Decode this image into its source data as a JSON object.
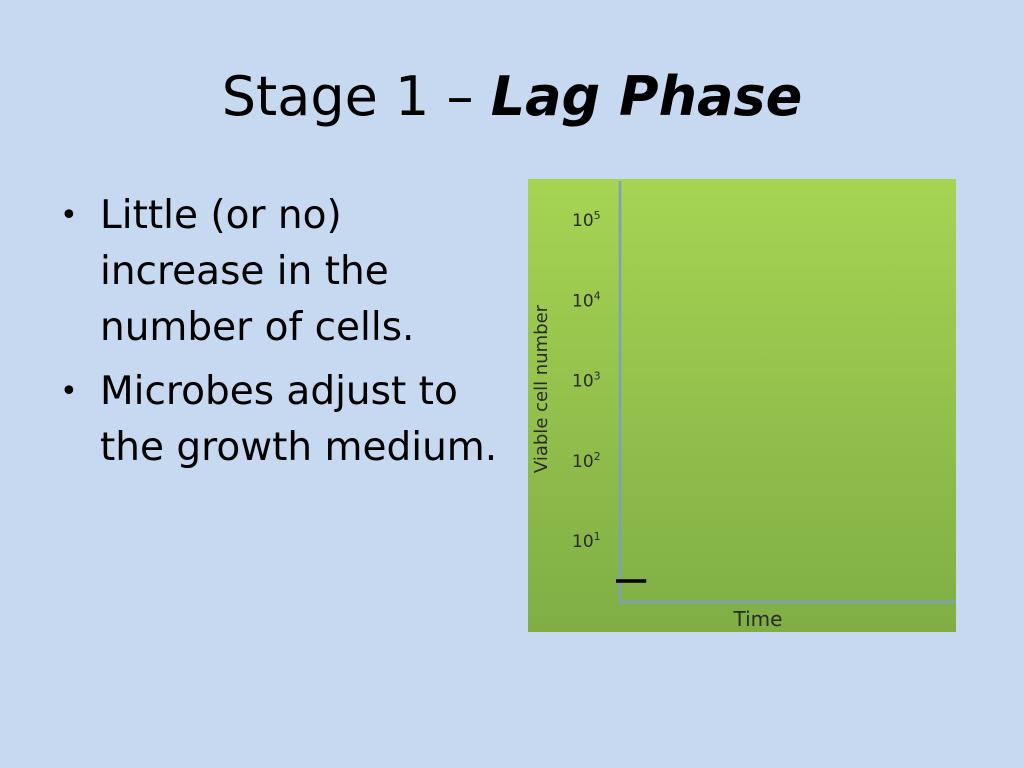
{
  "slide": {
    "title_plain": "Stage 1 – ",
    "title_emph": "Lag Phase",
    "bullets": [
      "Little (or no) increase in the number of cells.",
      "Microbes adjust to the growth medium."
    ],
    "bullet_glyph": "•"
  },
  "chart_data": {
    "type": "line",
    "title": "",
    "xlabel": "Time",
    "ylabel": "Viable cell number",
    "y_scale": "log",
    "y_ticks": [
      {
        "value": 10,
        "base": "10",
        "exp": "1"
      },
      {
        "value": 100,
        "base": "10",
        "exp": "2"
      },
      {
        "value": 1000,
        "base": "10",
        "exp": "3"
      },
      {
        "value": 10000,
        "base": "10",
        "exp": "4"
      },
      {
        "value": 100000,
        "base": "10",
        "exp": "5"
      }
    ],
    "series": [
      {
        "x": [
          0,
          0.18
        ],
        "y": [
          4,
          4
        ]
      }
    ],
    "colors": {
      "background_top": "#a6d453",
      "background_bottom": "#7fae45",
      "axis": "#7f9fbf",
      "line": "#000000",
      "text": "#2a2a2a"
    }
  }
}
